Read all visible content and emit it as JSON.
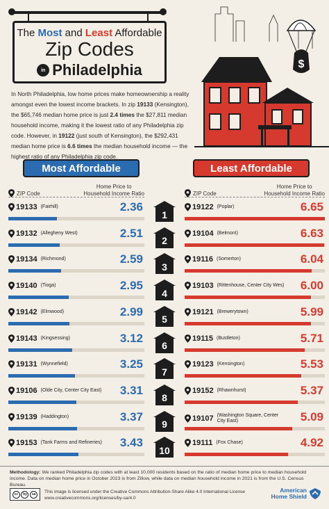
{
  "title": {
    "line1_pre": "The ",
    "line1_most": "Most",
    "line1_and": " and ",
    "line1_least": "Least",
    "line1_post": " Affordable",
    "line2": "Zip Codes",
    "in": "in",
    "city": "Philadelphia"
  },
  "intro": {
    "p1": "In North Philadelphia, low home prices make homeownership a reality amongst even the lowest income brackets. In zip ",
    "b1": "19133",
    "p2": " (Kensington), the $65,746 median home price is just ",
    "b2": "2.4 times",
    "p3": " the $27,811 median household income, making it the lowest ratio of any Philadelphia zip code. However, in ",
    "b3": "19122",
    "p4": " (just south of Kensington), the $292,431 median home price is ",
    "b4": "6.6 times",
    "p5": " the median household income — the highest ratio of any Philadelphia zip code."
  },
  "buttons": {
    "most": "Most Affordable",
    "least": "Least Affordable"
  },
  "headers": {
    "zip": "ZIP Code",
    "ratio_l1": "Home Price to",
    "ratio_l2": "Household Income Ratio"
  },
  "colors": {
    "blue": "#2b6bb0",
    "red": "#d63a2e",
    "dark": "#1d1d1d"
  },
  "icons": {
    "pin": "map-pin-icon",
    "house": "house-icon",
    "cc": "creative-commons-icon",
    "brand": "american-home-shield-logo"
  },
  "chart_data": {
    "type": "table",
    "ratio_scale_max": 6.65,
    "most_affordable": [
      {
        "rank": "1",
        "zip": "19133",
        "area": "(Fairhill)",
        "ratio": 2.36,
        "label": "2.36"
      },
      {
        "rank": "2",
        "zip": "19132",
        "area": "(Allegheny West)",
        "ratio": 2.51,
        "label": "2.51"
      },
      {
        "rank": "3",
        "zip": "19134",
        "area": "(Richmond)",
        "ratio": 2.59,
        "label": "2.59"
      },
      {
        "rank": "4",
        "zip": "19140",
        "area": "(Tioga)",
        "ratio": 2.95,
        "label": "2.95"
      },
      {
        "rank": "5",
        "zip": "19142",
        "area": "(Elmwood)",
        "ratio": 2.99,
        "label": "2.99"
      },
      {
        "rank": "6",
        "zip": "19143",
        "area": "(Kingsessing)",
        "ratio": 3.12,
        "label": "3.12"
      },
      {
        "rank": "7",
        "zip": "19131",
        "area": "(Wynnefield)",
        "ratio": 3.25,
        "label": "3.25"
      },
      {
        "rank": "8",
        "zip": "19106",
        "area": "(Olde City, Center City East)",
        "ratio": 3.31,
        "label": "3.31"
      },
      {
        "rank": "9",
        "zip": "19139",
        "area": "(Haddington)",
        "ratio": 3.37,
        "label": "3.37"
      },
      {
        "rank": "10",
        "zip": "19153",
        "area": "(Tank Farms and Refineries)",
        "ratio": 3.43,
        "label": "3.43"
      }
    ],
    "least_affordable": [
      {
        "zip": "19122",
        "area": "(Poplar)",
        "ratio": 6.65,
        "label": "6.65"
      },
      {
        "zip": "19104",
        "area": "(Belmont)",
        "ratio": 6.63,
        "label": "6.63"
      },
      {
        "zip": "19116",
        "area": "(Somerton)",
        "ratio": 6.04,
        "label": "6.04"
      },
      {
        "zip": "19103",
        "area": "(Rittenhouse, Center City Wes)",
        "ratio": 6.0,
        "label": "6.00"
      },
      {
        "zip": "19121",
        "area": "(Brewerytown)",
        "ratio": 5.99,
        "label": "5.99"
      },
      {
        "zip": "19115",
        "area": "(Bustleton)",
        "ratio": 5.71,
        "label": "5.71"
      },
      {
        "zip": "19123",
        "area": "(Kensington)",
        "ratio": 5.53,
        "label": "5.53"
      },
      {
        "zip": "19152",
        "area": "(Rhawnhurst)",
        "ratio": 5.37,
        "label": "5.37"
      },
      {
        "zip": "19107",
        "area": "(Washington Square, Center City East)",
        "ratio": 5.09,
        "label": "5.09"
      },
      {
        "zip": "19111",
        "area": "(Fox Chase)",
        "ratio": 4.92,
        "label": "4.92"
      }
    ]
  },
  "footer": {
    "method_label": "Methodology:",
    "method_text": " We ranked Philadelphia zip codes with at least 10,000 residents based on the ratio of median home price to median household income. Data on median home price in October 2023 is from Zillow, while data on median household income in 2021 is from the U.S. Census Bureau.",
    "license_l1": "This image is licensed under the Creative Commons Attribution-Share Alike 4.0 International License",
    "license_l2": "www.creativecommons.org/licenses/by-sa/4.0",
    "cc_glyphs": [
      "cc",
      "by",
      "sa"
    ],
    "brand_l1": "American",
    "brand_l2": "Home Shield"
  }
}
